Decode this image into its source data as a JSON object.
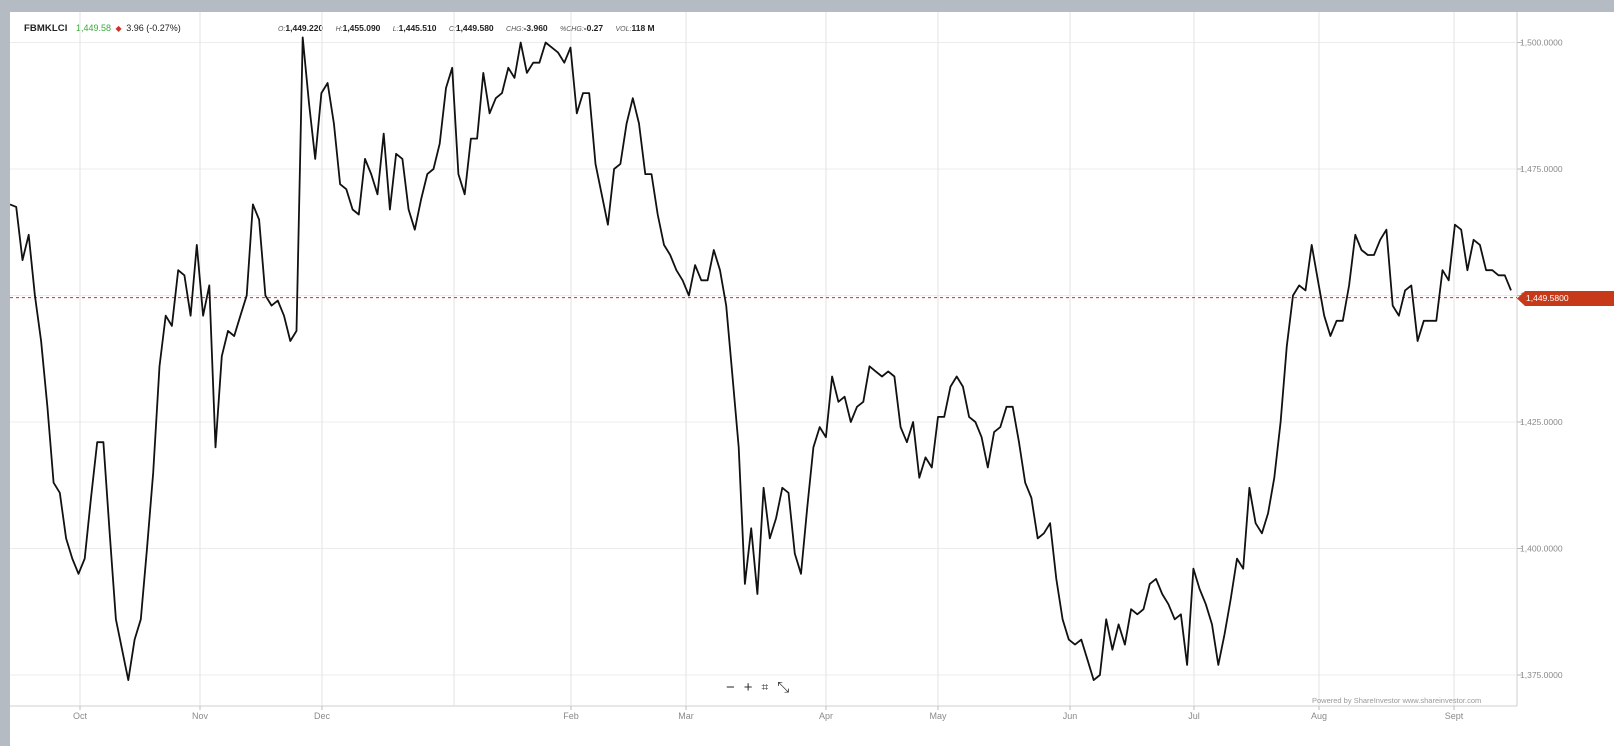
{
  "header": {
    "symbol": "FBMKLCI",
    "last": "1,449.58",
    "change": "3.96 (-0.27%)",
    "change_color": "#d0302a",
    "last_color": "#3caa3c",
    "open_label": "O:",
    "open": "1,449.220",
    "high_label": "H:",
    "high": "1,455.090",
    "low_label": "L:",
    "low": "1,445.510",
    "close_label": "C:",
    "close": "1,449.580",
    "chg_label": "CHG:",
    "chg": "-3.960",
    "pchg_label": "%CHG:",
    "pchg": "-0.27",
    "vol_label": "VOL:",
    "vol": "118 M"
  },
  "badge": {
    "value": "1,449.5800"
  },
  "zoom": {
    "minus": "−",
    "plus": "+",
    "fit": "⌗",
    "expand": "⤡"
  },
  "footer": {
    "powered": "Powered by ShareInvestor www.shareinvestor.com"
  },
  "chart_data": {
    "type": "line",
    "title": "",
    "xlabel": "",
    "ylabel": "",
    "x_ticks": [
      "Oct",
      "Nov",
      "Dec",
      "Feb",
      "Mar",
      "Apr",
      "May",
      "Jun",
      "Jul",
      "Aug",
      "Sept"
    ],
    "y_ticks": [
      "1,375.0000",
      "1,400.0000",
      "1,425.0000",
      "1,450.0000",
      "1,475.0000",
      "1,500.0000"
    ],
    "ylim": [
      1373,
      1502
    ],
    "reference_line": 1449.58,
    "grid": true,
    "line_color": "#111111",
    "ref_color": "#d0302a",
    "series": [
      {
        "values": [
          1468,
          1467.5,
          1457,
          1462,
          1450,
          1441,
          1428,
          1413,
          1411,
          1402,
          1398,
          1395,
          1398,
          1410,
          1421,
          1421,
          1403,
          1386,
          1380,
          1374,
          1382,
          1386,
          1400,
          1415,
          1436,
          1446,
          1444,
          1455,
          1454,
          1446,
          1460,
          1446,
          1452,
          1420,
          1438,
          1443,
          1442,
          1446,
          1450,
          1468,
          1465,
          1450,
          1448,
          1449,
          1446,
          1441,
          1443,
          1501,
          1488,
          1477,
          1490,
          1492,
          1484,
          1472,
          1471,
          1467,
          1466,
          1477,
          1474,
          1470,
          1482,
          1467,
          1478,
          1477,
          1467,
          1463,
          1469,
          1474,
          1475,
          1480,
          1491,
          1495,
          1474,
          1470,
          1481,
          1481,
          1494,
          1486,
          1489,
          1490,
          1495,
          1493,
          1500,
          1494,
          1496,
          1496,
          1500,
          1499,
          1498,
          1496,
          1499,
          1486,
          1490,
          1490,
          1476,
          1470,
          1464,
          1475,
          1476,
          1484,
          1489,
          1484,
          1474,
          1474,
          1466,
          1460,
          1458,
          1455,
          1453,
          1450,
          1456,
          1453,
          1453,
          1459,
          1455,
          1448,
          1434,
          1420,
          1393,
          1404,
          1391,
          1412,
          1402,
          1406,
          1412,
          1411,
          1399,
          1395,
          1408,
          1420,
          1424,
          1422,
          1434,
          1429,
          1430,
          1425,
          1428,
          1429,
          1436,
          1435,
          1434,
          1435,
          1434,
          1424,
          1421,
          1425,
          1414,
          1418,
          1416,
          1426,
          1426,
          1432,
          1434,
          1432,
          1426,
          1425,
          1422,
          1416,
          1423,
          1424,
          1428,
          1428,
          1421,
          1413,
          1410,
          1402,
          1403,
          1405,
          1394,
          1386,
          1382,
          1381,
          1382,
          1378,
          1374,
          1375,
          1386,
          1380,
          1385,
          1381,
          1388,
          1387,
          1388,
          1393,
          1394,
          1391,
          1389,
          1386,
          1387,
          1377,
          1396,
          1392,
          1389,
          1385,
          1377,
          1383,
          1390,
          1398,
          1396,
          1412,
          1405,
          1403,
          1407,
          1414,
          1425,
          1440,
          1450,
          1452,
          1451,
          1460,
          1453,
          1446,
          1442,
          1445,
          1445,
          1452,
          1462,
          1459,
          1458,
          1458,
          1461,
          1463,
          1448,
          1446,
          1451,
          1452,
          1441,
          1445,
          1445,
          1445,
          1455,
          1453,
          1464,
          1463,
          1455,
          1461,
          1460,
          1455,
          1455,
          1454,
          1454,
          1451
        ]
      }
    ]
  }
}
